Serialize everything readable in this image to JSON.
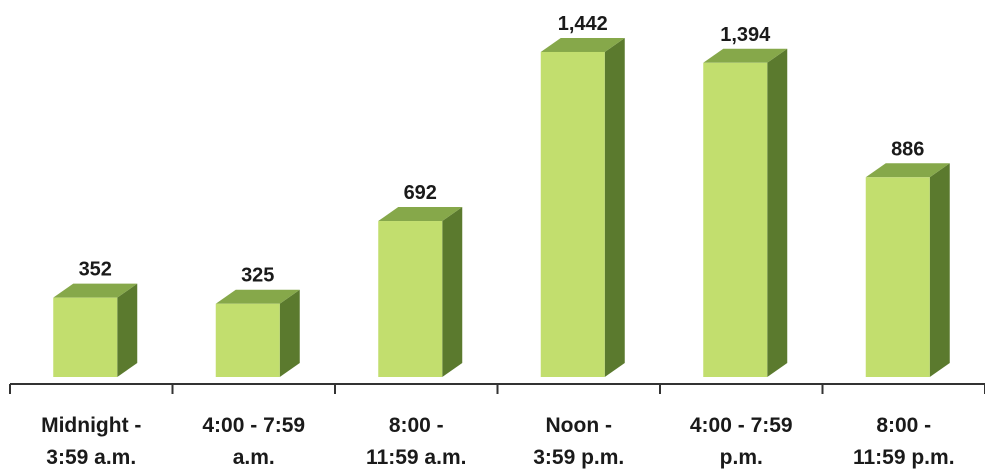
{
  "chart_data": {
    "type": "bar",
    "style": "3d-column",
    "categories": [
      [
        "Midnight -",
        "3:59 a.m."
      ],
      [
        "4:00 - 7:59",
        "a.m."
      ],
      [
        "8:00 -",
        "11:59 a.m."
      ],
      [
        "Noon -",
        "3:59 p.m."
      ],
      [
        "4:00 - 7:59",
        "p.m."
      ],
      [
        "8:00 -",
        "11:59 p.m."
      ]
    ],
    "values": [
      352,
      325,
      692,
      1442,
      1394,
      886
    ],
    "data_labels": [
      "352",
      "325",
      "692",
      "1,442",
      "1,394",
      "886"
    ],
    "ylim": [
      0,
      1600
    ],
    "grid": false,
    "legend": "none",
    "colors": {
      "front": "#c2de6e",
      "side": "#5b7a2e",
      "top": "#86a84a",
      "axis": "#333333"
    }
  }
}
